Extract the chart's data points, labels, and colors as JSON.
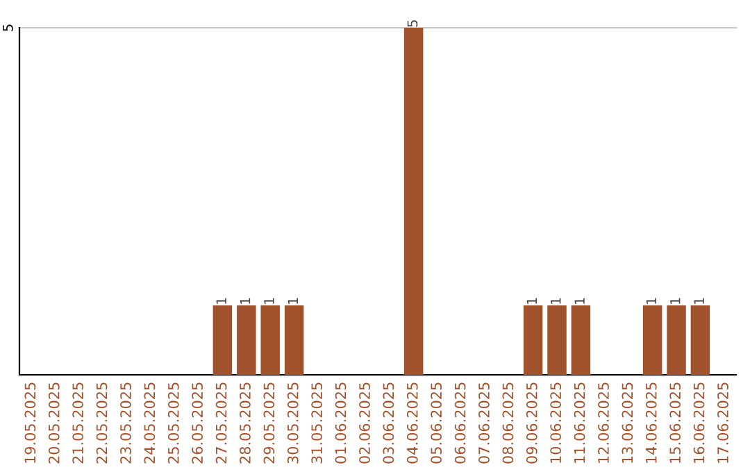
{
  "chart_data": {
    "type": "bar",
    "categories": [
      "19.05.2025",
      "20.05.2025",
      "21.05.2025",
      "22.05.2025",
      "23.05.2025",
      "24.05.2025",
      "25.05.2025",
      "26.05.2025",
      "27.05.2025",
      "28.05.2025",
      "29.05.2025",
      "30.05.2025",
      "31.05.2025",
      "01.06.2025",
      "02.06.2025",
      "03.06.2025",
      "04.06.2025",
      "05.06.2025",
      "06.06.2025",
      "07.06.2025",
      "08.06.2025",
      "09.06.2025",
      "10.06.2025",
      "11.06.2025",
      "12.06.2025",
      "13.06.2025",
      "14.06.2025",
      "15.06.2025",
      "16.06.2025",
      "17.06.2025"
    ],
    "values": [
      0,
      0,
      0,
      0,
      0,
      0,
      0,
      0,
      1,
      1,
      1,
      1,
      0,
      0,
      0,
      0,
      5,
      0,
      0,
      0,
      0,
      1,
      1,
      1,
      0,
      0,
      1,
      1,
      1,
      0
    ],
    "value_labels": [
      null,
      null,
      null,
      null,
      null,
      null,
      null,
      null,
      "1",
      "1",
      "1",
      "1",
      null,
      null,
      null,
      null,
      "5",
      null,
      null,
      null,
      null,
      "1",
      "1",
      "1",
      null,
      null,
      "1",
      "1",
      "1",
      null
    ],
    "color": "#a0522d",
    "ylim": [
      0,
      5
    ],
    "yticks": [
      5
    ],
    "ref_lines": [
      {
        "axis": "y",
        "value": 5,
        "color": "#c8c8c8"
      }
    ]
  }
}
